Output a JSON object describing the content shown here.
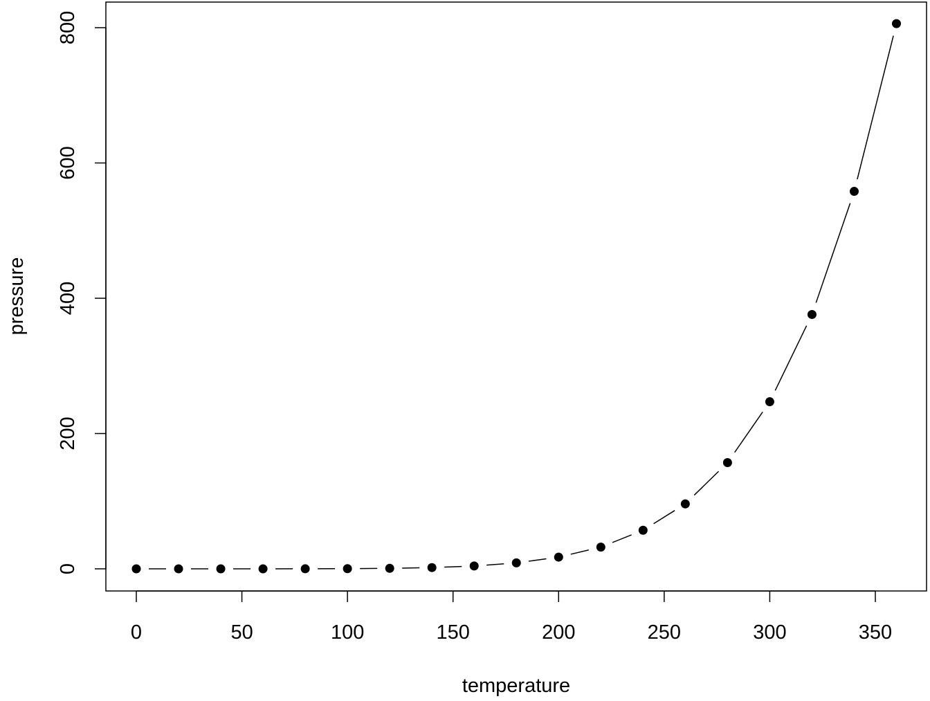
{
  "chart_data": {
    "type": "line",
    "markers": true,
    "line_style": "both (points with connecting segments)",
    "title": "",
    "xlabel": "temperature",
    "ylabel": "pressure",
    "xlim": [
      0,
      360
    ],
    "ylim": [
      0,
      806
    ],
    "x_ticks": [
      0,
      50,
      100,
      150,
      200,
      250,
      300,
      350
    ],
    "x_tick_labels": [
      "0",
      "50",
      "100",
      "150",
      "200",
      "250",
      "300",
      "350"
    ],
    "y_ticks": [
      0,
      200,
      400,
      600,
      800
    ],
    "y_tick_labels": [
      "0",
      "200",
      "400",
      "600",
      "800"
    ],
    "grid": false,
    "color": "#000000",
    "x": [
      0,
      20,
      40,
      60,
      80,
      100,
      120,
      140,
      160,
      180,
      200,
      220,
      240,
      260,
      280,
      300,
      320,
      340,
      360
    ],
    "y": [
      0.0002,
      0.0012,
      0.006,
      0.03,
      0.09,
      0.27,
      0.75,
      1.85,
      4.2,
      8.8,
      17.3,
      32.1,
      57,
      96,
      157,
      247,
      376,
      558,
      806
    ]
  }
}
